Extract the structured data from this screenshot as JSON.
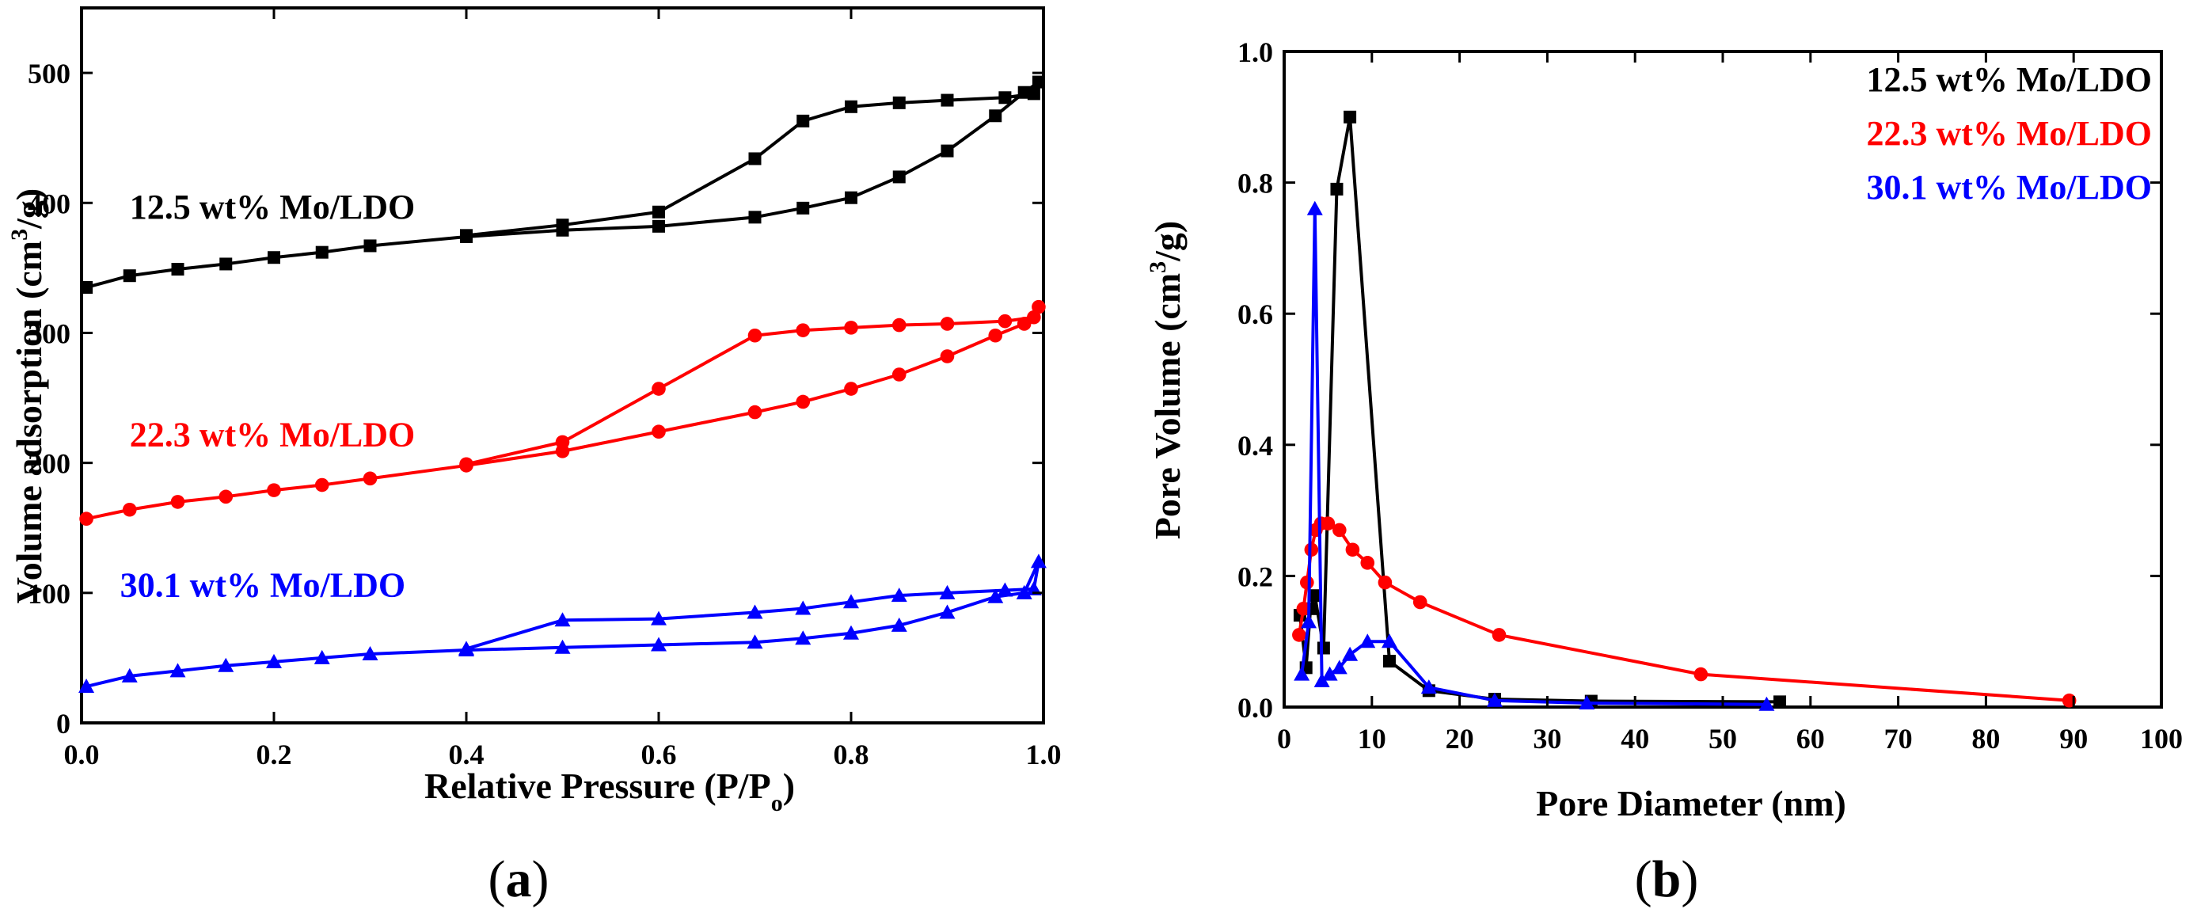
{
  "chart_data": [
    {
      "type": "line",
      "id": "a",
      "caption_open": "(",
      "caption_letter": "a",
      "caption_close": ")",
      "xlabel": "Relative Pressure (P/P",
      "xlabel_sub": "o",
      "xlabel_close": ")",
      "ylabel": "Volume adsorption (cm",
      "ylabel_sup": "3",
      "ylabel_close": "/g)",
      "xlim": [
        0,
        1.0
      ],
      "ylim": [
        0,
        550
      ],
      "xticks": [
        0.0,
        0.2,
        0.4,
        0.6,
        0.8,
        1.0
      ],
      "xtick_labels": [
        "0.0",
        "0.2",
        "0.4",
        "0.6",
        "0.8",
        "1.0"
      ],
      "yticks": [
        0,
        100,
        200,
        300,
        400,
        500
      ],
      "ytick_labels": [
        "0",
        "100",
        "200",
        "300",
        "400",
        "500"
      ],
      "series": [
        {
          "name": "12.5 wt% Mo/LDO",
          "color": "#000000",
          "marker": "square",
          "label_pos": [
            0.05,
            388
          ],
          "x": [
            0.005,
            0.05,
            0.1,
            0.15,
            0.2,
            0.25,
            0.3,
            0.4,
            0.5,
            0.6,
            0.7,
            0.75,
            0.8,
            0.85,
            0.9,
            0.95,
            0.98,
            0.995,
            0.99,
            0.96,
            0.9,
            0.85,
            0.8,
            0.75,
            0.7,
            0.6,
            0.5,
            0.4
          ],
          "values": [
            335,
            344,
            349,
            353,
            358,
            362,
            367,
            374,
            379,
            382,
            389,
            396,
            404,
            420,
            440,
            467,
            485,
            493,
            484,
            481,
            479,
            477,
            474,
            463,
            434,
            393,
            383,
            375
          ]
        },
        {
          "name": "22.3 wt% Mo/LDO",
          "color": "#ff0000",
          "marker": "circle",
          "label_pos": [
            0.05,
            213
          ],
          "x": [
            0.005,
            0.05,
            0.1,
            0.15,
            0.2,
            0.25,
            0.3,
            0.4,
            0.5,
            0.6,
            0.7,
            0.75,
            0.8,
            0.85,
            0.9,
            0.95,
            0.98,
            0.995,
            0.99,
            0.96,
            0.9,
            0.85,
            0.8,
            0.75,
            0.7,
            0.6,
            0.5,
            0.4
          ],
          "values": [
            157,
            164,
            170,
            174,
            179,
            183,
            188,
            198,
            209,
            224,
            239,
            247,
            257,
            268,
            282,
            298,
            307,
            320,
            312,
            309,
            307,
            306,
            304,
            302,
            298,
            257,
            216,
            199
          ]
        },
        {
          "name": "30.1 wt% Mo/LDO",
          "color": "#0000ff",
          "marker": "triangle",
          "label_pos": [
            0.04,
            97
          ],
          "x": [
            0.005,
            0.05,
            0.1,
            0.15,
            0.2,
            0.25,
            0.3,
            0.4,
            0.5,
            0.6,
            0.7,
            0.75,
            0.8,
            0.85,
            0.9,
            0.95,
            0.98,
            0.995,
            0.99,
            0.96,
            0.9,
            0.85,
            0.8,
            0.75,
            0.7,
            0.6,
            0.5,
            0.4
          ],
          "values": [
            28,
            36,
            40,
            44,
            47,
            50,
            53,
            56,
            58,
            60,
            62,
            65,
            69,
            75,
            85,
            97,
            100,
            124,
            103,
            102,
            100,
            98,
            93,
            88,
            85,
            80,
            79,
            57
          ]
        }
      ]
    },
    {
      "type": "line",
      "id": "b",
      "caption_open": "(",
      "caption_letter": "b",
      "caption_close": ")",
      "xlabel": "Pore Diameter (nm)",
      "ylabel": "Pore Volume (cm",
      "ylabel_sup": "3",
      "ylabel_close": "/g)",
      "xlim": [
        0,
        100
      ],
      "ylim": [
        0,
        1.0
      ],
      "xticks": [
        0,
        10,
        20,
        30,
        40,
        50,
        60,
        70,
        80,
        90,
        100
      ],
      "xtick_labels": [
        "0",
        "10",
        "20",
        "30",
        "40",
        "50",
        "60",
        "70",
        "80",
        "90",
        "100"
      ],
      "yticks": [
        0.0,
        0.2,
        0.4,
        0.6,
        0.8,
        1.0
      ],
      "ytick_labels": [
        "0.0",
        "0.2",
        "0.4",
        "0.6",
        "0.8",
        "1.0"
      ],
      "legend": "top-right",
      "series": [
        {
          "name": "12.5 wt% Mo/LDO",
          "color": "#000000",
          "marker": "square",
          "x": [
            1.8,
            2.5,
            3.0,
            3.5,
            4.5,
            6.0,
            7.5,
            12,
            16.5,
            24,
            35,
            56.5
          ],
          "values": [
            0.14,
            0.06,
            0.15,
            0.17,
            0.09,
            0.79,
            0.9,
            0.07,
            0.025,
            0.012,
            0.009,
            0.008
          ]
        },
        {
          "name": "22.3 wt% Mo/LDO",
          "color": "#ff0000",
          "marker": "circle",
          "x": [
            1.7,
            2.2,
            2.6,
            3.1,
            3.6,
            4.2,
            5.0,
            6.3,
            7.8,
            9.5,
            11.5,
            15.5,
            24.5,
            47.5,
            89.5
          ],
          "values": [
            0.11,
            0.15,
            0.19,
            0.24,
            0.27,
            0.28,
            0.28,
            0.27,
            0.24,
            0.22,
            0.19,
            0.16,
            0.11,
            0.05,
            0.01
          ]
        },
        {
          "name": "30.1 wt% Mo/LDO",
          "color": "#0000ff",
          "marker": "triangle",
          "x": [
            2.0,
            2.8,
            3.5,
            4.3,
            5.2,
            6.3,
            7.5,
            9.5,
            12.0,
            16.5,
            24.0,
            34.5,
            55.0
          ],
          "values": [
            0.05,
            0.13,
            0.76,
            0.04,
            0.05,
            0.06,
            0.08,
            0.1,
            0.1,
            0.03,
            0.01,
            0.006,
            0.004
          ]
        }
      ]
    }
  ]
}
